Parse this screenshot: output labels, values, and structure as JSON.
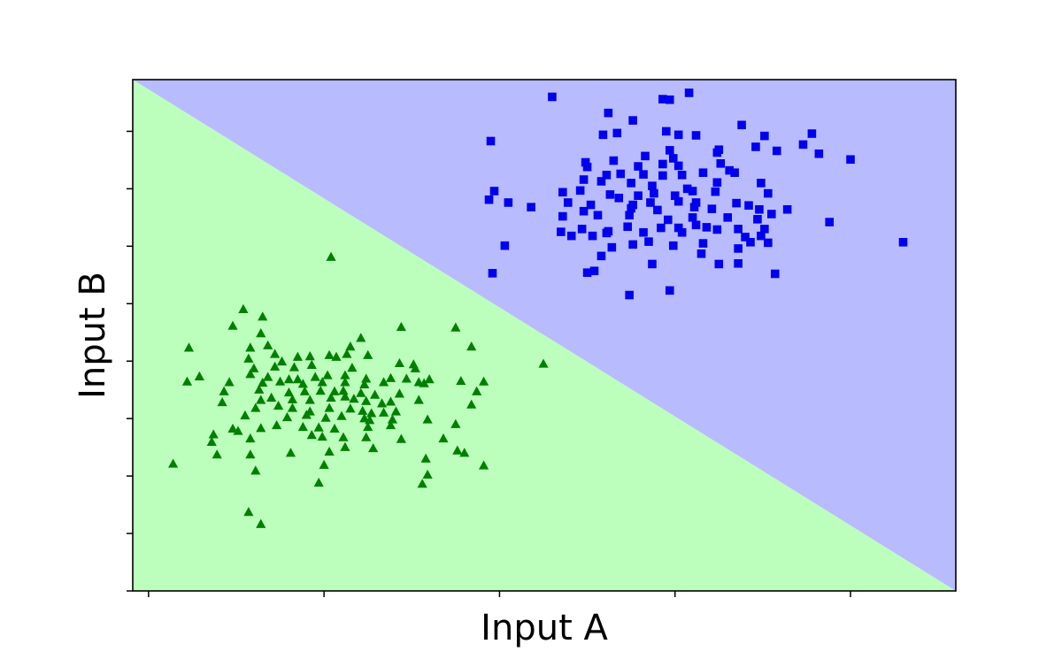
{
  "chart_data": {
    "type": "scatter",
    "title": "",
    "xlabel": "Input A",
    "ylabel": "Input B",
    "xlim": [
      -0.09,
      4.6
    ],
    "ylim": [
      -0.8,
      8.1
    ],
    "x_ticks": [
      0,
      1,
      2,
      3,
      4
    ],
    "y_ticks": [
      -0.8,
      0.2,
      1.2,
      2.2,
      3.2,
      4.2,
      5.2,
      6.2,
      7.2,
      8.2
    ],
    "tick_labels_shown": false,
    "grid": false,
    "legend": false,
    "decision_boundary": {
      "line": [
        [
          -0.09,
          8.1
        ],
        [
          4.6,
          -0.8
        ]
      ],
      "upper_region_color": "#b9bbff",
      "lower_region_color": "#bcffbc"
    },
    "series": [
      {
        "marker": "square",
        "color": "#0000ee",
        "points": [
          [
            2.3,
            7.8
          ],
          [
            3.08,
            7.87
          ],
          [
            2.93,
            7.76
          ],
          [
            2.97,
            7.75
          ],
          [
            3.38,
            7.31
          ],
          [
            2.62,
            7.52
          ],
          [
            2.76,
            7.39
          ],
          [
            2.95,
            7.2
          ],
          [
            2.59,
            7.14
          ],
          [
            2.67,
            7.17
          ],
          [
            3.02,
            7.14
          ],
          [
            3.12,
            7.13
          ],
          [
            3.51,
            7.12
          ],
          [
            3.78,
            7.16
          ],
          [
            3.73,
            6.97
          ],
          [
            3.46,
            6.93
          ],
          [
            3.25,
            6.88
          ],
          [
            2.97,
            6.87
          ],
          [
            2.83,
            6.77
          ],
          [
            2.99,
            6.73
          ],
          [
            3.24,
            6.83
          ],
          [
            3.58,
            6.86
          ],
          [
            3.82,
            6.81
          ],
          [
            4.0,
            6.71
          ],
          [
            1.95,
            7.03
          ],
          [
            2.49,
            6.66
          ],
          [
            2.65,
            6.69
          ],
          [
            2.79,
            6.59
          ],
          [
            2.93,
            6.63
          ],
          [
            3.02,
            6.6
          ],
          [
            3.26,
            6.64
          ],
          [
            3.31,
            6.52
          ],
          [
            2.5,
            6.58
          ],
          [
            2.61,
            6.44
          ],
          [
            2.69,
            6.46
          ],
          [
            2.82,
            6.45
          ],
          [
            2.93,
            6.43
          ],
          [
            3.04,
            6.44
          ],
          [
            3.16,
            6.48
          ],
          [
            3.34,
            6.48
          ],
          [
            2.48,
            6.36
          ],
          [
            2.58,
            6.33
          ],
          [
            2.75,
            6.3
          ],
          [
            2.87,
            6.25
          ],
          [
            3.07,
            6.2
          ],
          [
            3.24,
            6.31
          ],
          [
            3.49,
            6.3
          ],
          [
            1.97,
            6.16
          ],
          [
            2.36,
            6.14
          ],
          [
            2.46,
            6.17
          ],
          [
            2.63,
            6.1
          ],
          [
            2.68,
            6.04
          ],
          [
            2.79,
            6.08
          ],
          [
            2.88,
            6.12
          ],
          [
            3.0,
            6.08
          ],
          [
            3.1,
            6.16
          ],
          [
            3.23,
            6.15
          ],
          [
            3.53,
            6.12
          ],
          [
            1.94,
            6.01
          ],
          [
            2.05,
            5.96
          ],
          [
            2.18,
            5.88
          ],
          [
            2.39,
            5.96
          ],
          [
            2.52,
            5.92
          ],
          [
            2.76,
            5.92
          ],
          [
            2.86,
            5.96
          ],
          [
            3.02,
            5.98
          ],
          [
            3.12,
            5.96
          ],
          [
            3.35,
            5.95
          ],
          [
            3.48,
            5.84
          ],
          [
            2.48,
            5.81
          ],
          [
            2.75,
            5.86
          ],
          [
            2.9,
            5.83
          ],
          [
            3.11,
            5.88
          ],
          [
            3.21,
            5.85
          ],
          [
            3.42,
            5.91
          ],
          [
            3.64,
            5.84
          ],
          [
            2.36,
            5.72
          ],
          [
            2.56,
            5.74
          ],
          [
            2.74,
            5.74
          ],
          [
            2.96,
            5.66
          ],
          [
            3.1,
            5.7
          ],
          [
            3.3,
            5.7
          ],
          [
            3.47,
            5.67
          ],
          [
            3.55,
            5.76
          ],
          [
            2.35,
            5.45
          ],
          [
            2.47,
            5.5
          ],
          [
            2.62,
            5.46
          ],
          [
            2.73,
            5.54
          ],
          [
            2.92,
            5.52
          ],
          [
            3.02,
            5.52
          ],
          [
            3.12,
            5.57
          ],
          [
            3.18,
            5.53
          ],
          [
            3.36,
            5.5
          ],
          [
            3.51,
            5.5
          ],
          [
            3.88,
            5.62
          ],
          [
            2.53,
            5.38
          ],
          [
            2.61,
            5.43
          ],
          [
            2.82,
            5.44
          ],
          [
            3.04,
            5.44
          ],
          [
            3.24,
            5.49
          ],
          [
            3.4,
            5.36
          ],
          [
            3.49,
            5.38
          ],
          [
            2.41,
            5.38
          ],
          [
            2.85,
            5.28
          ],
          [
            3.16,
            5.25
          ],
          [
            3.43,
            5.27
          ],
          [
            3.53,
            5.26
          ],
          [
            4.3,
            5.27
          ],
          [
            2.03,
            5.21
          ],
          [
            2.64,
            5.18
          ],
          [
            2.76,
            5.23
          ],
          [
            2.99,
            5.21
          ],
          [
            3.15,
            5.07
          ],
          [
            3.36,
            5.16
          ],
          [
            2.58,
            5.03
          ],
          [
            2.87,
            4.89
          ],
          [
            3.25,
            4.89
          ],
          [
            3.36,
            4.9
          ],
          [
            1.96,
            4.73
          ],
          [
            2.54,
            4.77
          ],
          [
            2.5,
            4.74
          ],
          [
            3.57,
            4.72
          ],
          [
            2.74,
            4.35
          ],
          [
            2.97,
            4.43
          ]
        ]
      },
      {
        "marker": "triangle",
        "color": "#007f00",
        "points": [
          [
            1.04,
            5.01
          ],
          [
            0.54,
            4.1
          ],
          [
            0.65,
            3.97
          ],
          [
            0.48,
            3.81
          ],
          [
            1.44,
            3.79
          ],
          [
            1.75,
            3.78
          ],
          [
            0.64,
            3.68
          ],
          [
            1.21,
            3.6
          ],
          [
            1.15,
            3.45
          ],
          [
            1.84,
            3.45
          ],
          [
            0.23,
            3.43
          ],
          [
            0.58,
            3.43
          ],
          [
            0.68,
            3.47
          ],
          [
            0.72,
            3.32
          ],
          [
            1.03,
            3.3
          ],
          [
            0.85,
            3.27
          ],
          [
            0.92,
            3.28
          ],
          [
            1.07,
            3.27
          ],
          [
            1.13,
            3.32
          ],
          [
            1.25,
            3.3
          ],
          [
            0.57,
            3.24
          ],
          [
            0.76,
            3.19
          ],
          [
            1.43,
            3.16
          ],
          [
            1.51,
            3.14
          ],
          [
            1.52,
            3.07
          ],
          [
            2.25,
            3.15
          ],
          [
            0.6,
            3.07
          ],
          [
            0.72,
            3.1
          ],
          [
            0.83,
            3.09
          ],
          [
            0.93,
            3.13
          ],
          [
            1.16,
            3.08
          ],
          [
            0.29,
            2.93
          ],
          [
            0.58,
            2.97
          ],
          [
            0.68,
            2.92
          ],
          [
            0.85,
            2.88
          ],
          [
            0.95,
            2.92
          ],
          [
            1.02,
            2.95
          ],
          [
            1.12,
            2.95
          ],
          [
            1.24,
            2.89
          ],
          [
            1.38,
            2.9
          ],
          [
            1.47,
            2.89
          ],
          [
            1.6,
            2.88
          ],
          [
            0.22,
            2.84
          ],
          [
            0.46,
            2.83
          ],
          [
            0.65,
            2.82
          ],
          [
            0.75,
            2.84
          ],
          [
            0.8,
            2.88
          ],
          [
            0.88,
            2.8
          ],
          [
            0.99,
            2.83
          ],
          [
            1.12,
            2.83
          ],
          [
            1.23,
            2.79
          ],
          [
            1.34,
            2.83
          ],
          [
            1.54,
            2.83
          ],
          [
            1.57,
            2.81
          ],
          [
            1.78,
            2.85
          ],
          [
            1.91,
            2.84
          ],
          [
            0.43,
            2.67
          ],
          [
            0.63,
            2.7
          ],
          [
            0.8,
            2.65
          ],
          [
            0.89,
            2.67
          ],
          [
            0.98,
            2.68
          ],
          [
            1.06,
            2.67
          ],
          [
            1.11,
            2.68
          ],
          [
            1.21,
            2.64
          ],
          [
            1.29,
            2.61
          ],
          [
            1.43,
            2.63
          ],
          [
            1.87,
            2.67
          ],
          [
            0.42,
            2.48
          ],
          [
            0.64,
            2.52
          ],
          [
            0.7,
            2.56
          ],
          [
            0.82,
            2.53
          ],
          [
            0.92,
            2.52
          ],
          [
            1.04,
            2.56
          ],
          [
            1.12,
            2.58
          ],
          [
            1.17,
            2.54
          ],
          [
            1.24,
            2.5
          ],
          [
            1.33,
            2.46
          ],
          [
            1.38,
            2.49
          ],
          [
            1.54,
            2.52
          ],
          [
            1.84,
            2.44
          ],
          [
            0.61,
            2.38
          ],
          [
            0.74,
            2.42
          ],
          [
            0.82,
            2.38
          ],
          [
            0.92,
            2.32
          ],
          [
            1.03,
            2.38
          ],
          [
            1.15,
            2.37
          ],
          [
            1.22,
            2.33
          ],
          [
            1.27,
            2.29
          ],
          [
            1.34,
            2.3
          ],
          [
            1.41,
            2.32
          ],
          [
            0.55,
            2.25
          ],
          [
            0.79,
            2.22
          ],
          [
            0.9,
            2.26
          ],
          [
            1.01,
            2.21
          ],
          [
            1.1,
            2.24
          ],
          [
            1.23,
            2.2
          ],
          [
            1.26,
            2.17
          ],
          [
            1.39,
            2.18
          ],
          [
            1.59,
            2.18
          ],
          [
            0.48,
            2.02
          ],
          [
            0.64,
            2.03
          ],
          [
            0.73,
            2.08
          ],
          [
            0.88,
            2.05
          ],
          [
            0.97,
            2.04
          ],
          [
            1.06,
            2.02
          ],
          [
            1.25,
            2.05
          ],
          [
            1.38,
            2.08
          ],
          [
            1.75,
            2.1
          ],
          [
            0.37,
            1.92
          ],
          [
            0.51,
            1.98
          ],
          [
            0.58,
            1.85
          ],
          [
            0.93,
            1.91
          ],
          [
            0.99,
            1.88
          ],
          [
            1.11,
            1.87
          ],
          [
            1.24,
            1.87
          ],
          [
            1.44,
            1.84
          ],
          [
            1.68,
            1.85
          ],
          [
            0.36,
            1.79
          ],
          [
            0.81,
            1.6
          ],
          [
            1.03,
            1.62
          ],
          [
            1.12,
            1.7
          ],
          [
            1.28,
            1.68
          ],
          [
            1.76,
            1.64
          ],
          [
            1.8,
            1.6
          ],
          [
            0.39,
            1.57
          ],
          [
            1.0,
            1.39
          ],
          [
            1.58,
            1.5
          ],
          [
            1.91,
            1.38
          ],
          [
            0.14,
            1.41
          ],
          [
            0.61,
            1.29
          ],
          [
            0.97,
            1.08
          ],
          [
            1.56,
            1.06
          ],
          [
            0.57,
            0.57
          ],
          [
            0.64,
            0.36
          ],
          [
            -0.17,
            1.37
          ],
          [
            0.58,
            1.57
          ],
          [
            1.59,
            1.22
          ]
        ]
      }
    ]
  }
}
